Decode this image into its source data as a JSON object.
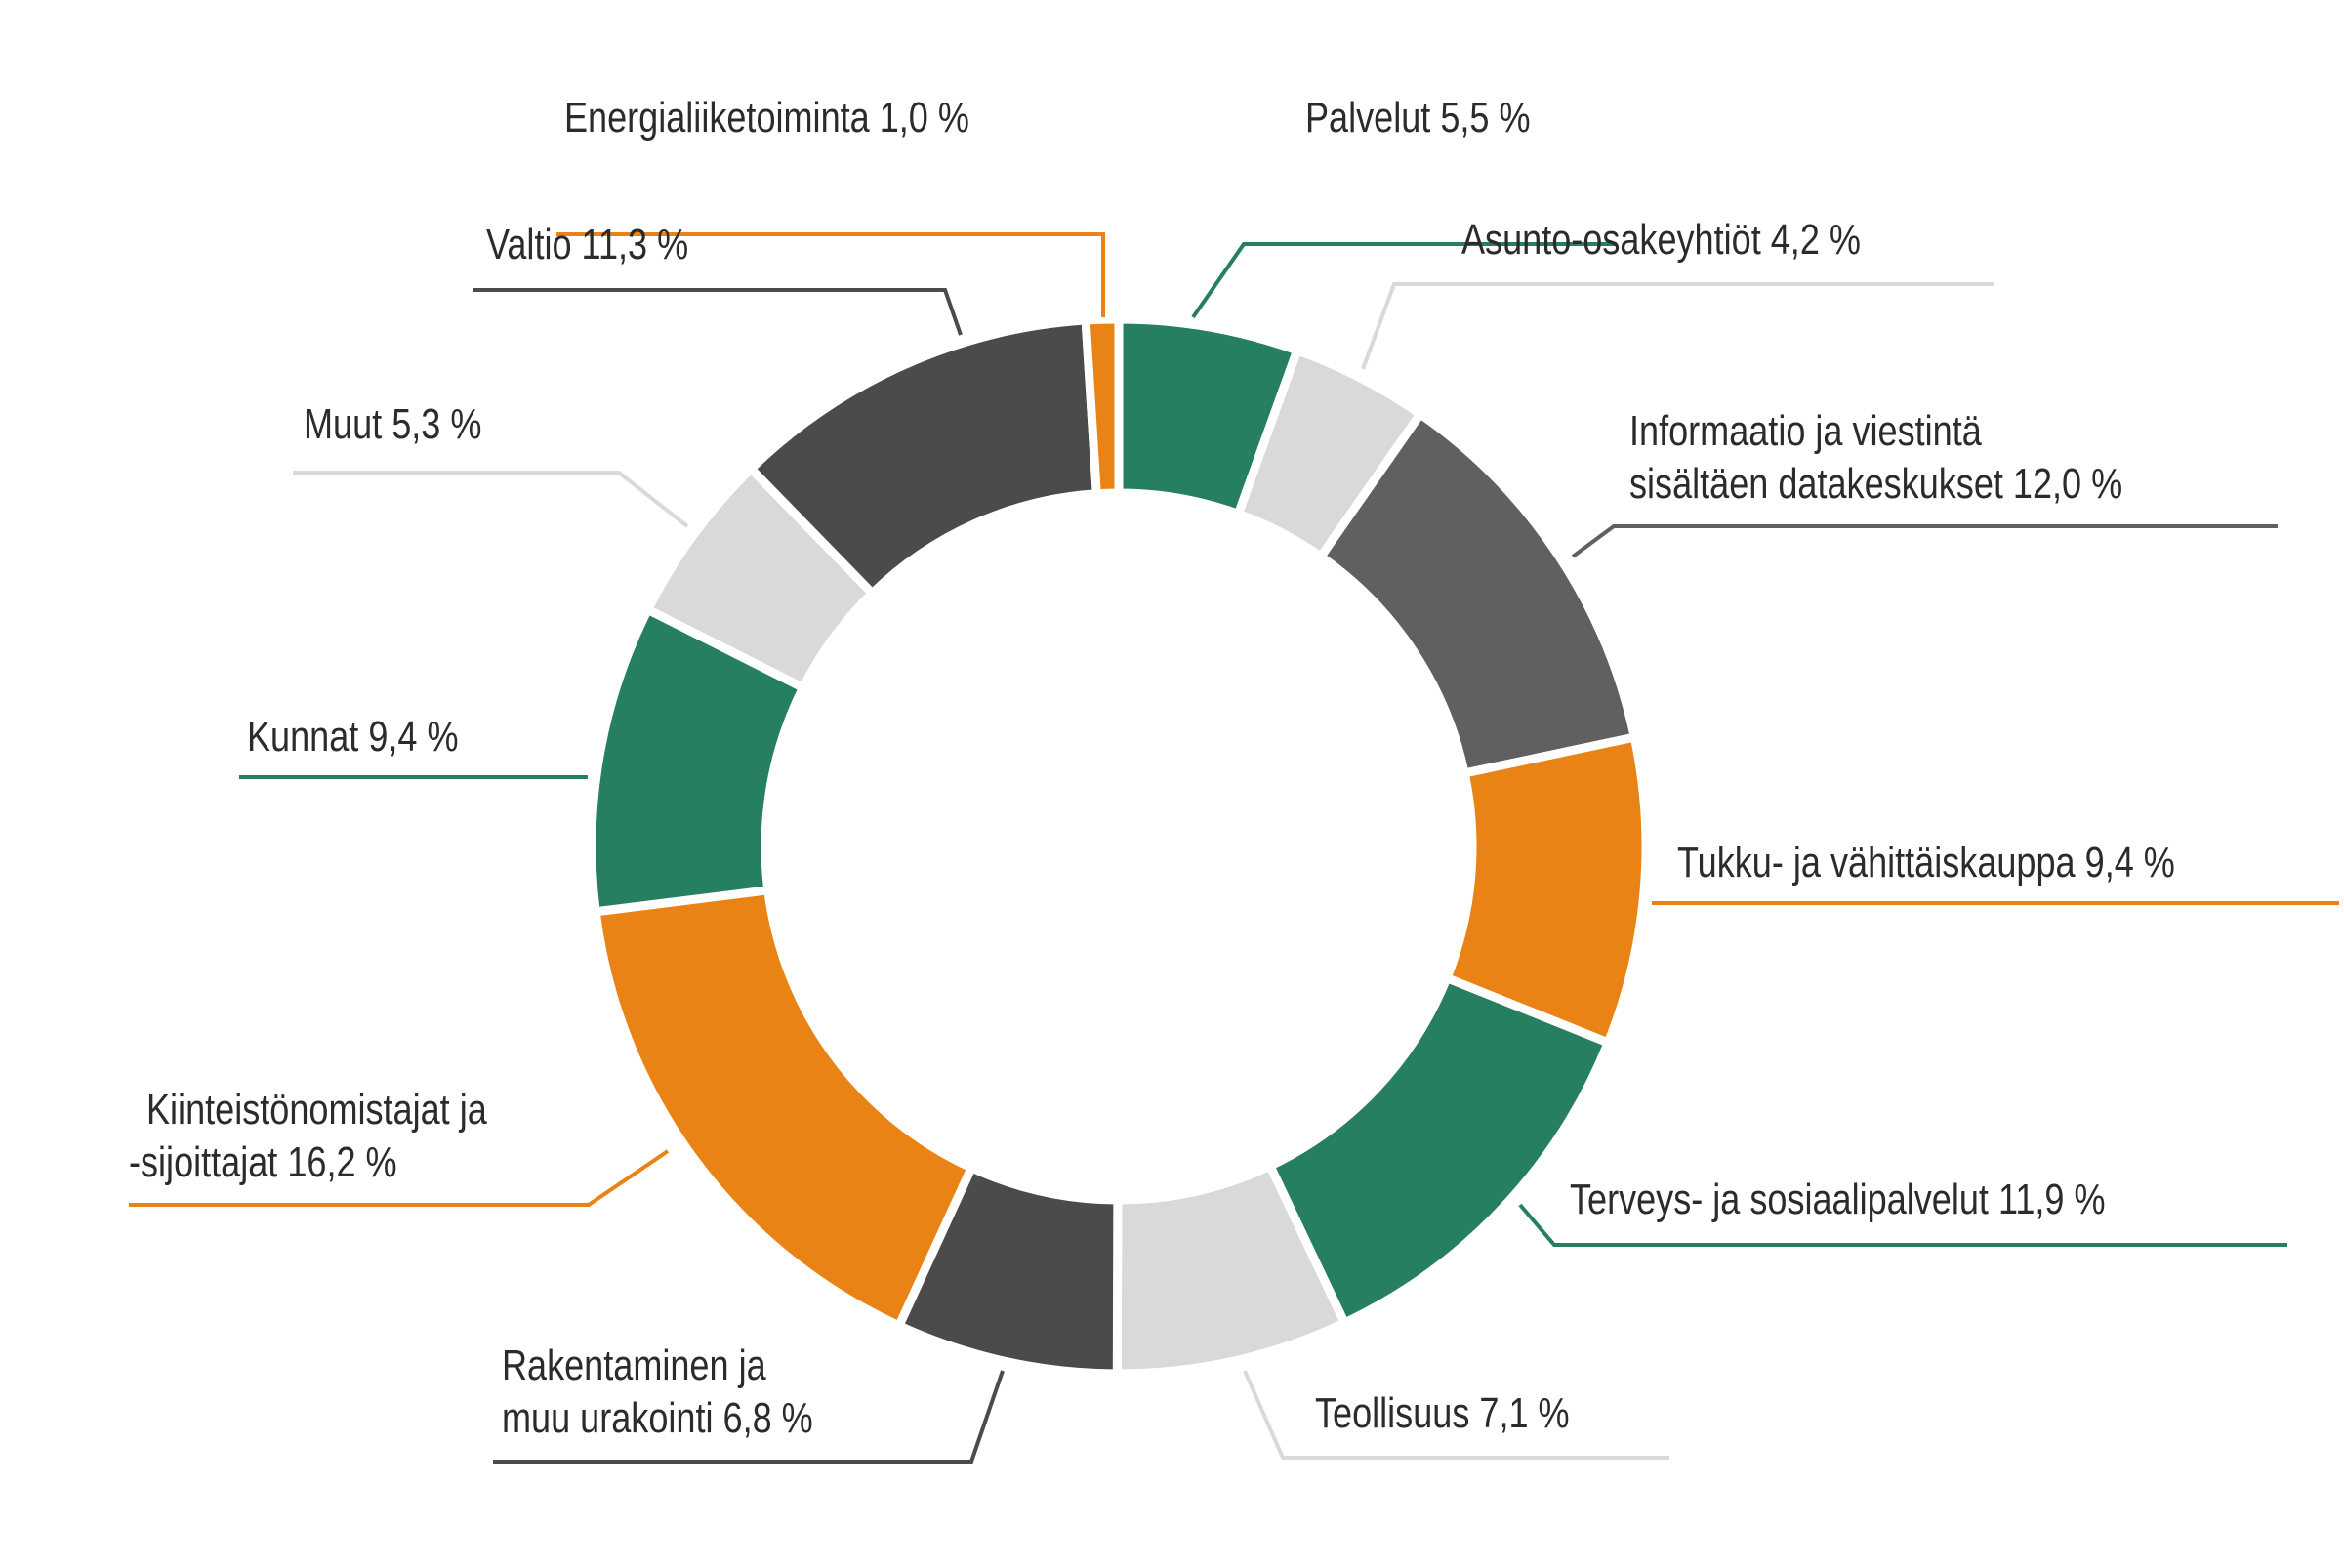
{
  "chart_data": {
    "type": "pie",
    "variant": "donut",
    "title": "",
    "legend": "none",
    "start": "top",
    "direction": "clockwise",
    "colors": {
      "green": "#268060",
      "orange": "#E98315",
      "dark_gray": "#4B4B4B",
      "medium_gray": "#606060",
      "light_gray": "#D9D9D9"
    },
    "slices": [
      {
        "label": "Palvelut",
        "value": 5.5,
        "display": "Palvelut 5,5 %",
        "lines": [
          "Palvelut 5,5 %"
        ],
        "color": "#268060"
      },
      {
        "label": "Asunto-osakeyhtiöt",
        "value": 4.2,
        "display": "Asunto-osakeyhtiöt 4,2 %",
        "lines": [
          "Asunto-osakeyhtiöt 4,2 %"
        ],
        "color": "#D9D9D9"
      },
      {
        "label": "Informaatio ja viestintä sisältäen datakeskukset",
        "value": 12.0,
        "display": "Informaatio ja viestintä sisältäen datakeskukset 12,0 %",
        "lines": [
          "Informaatio ja viestintä",
          "sisältäen datakeskukset 12,0 %"
        ],
        "color": "#606060"
      },
      {
        "label": "Tukku- ja vähittäiskauppa",
        "value": 9.4,
        "display": "Tukku- ja vähittäiskauppa 9,4 %",
        "lines": [
          "Tukku- ja vähittäiskauppa 9,4 %"
        ],
        "color": "#E98315"
      },
      {
        "label": "Terveys- ja sosiaalipalvelut",
        "value": 11.9,
        "display": "Terveys- ja sosiaalipalvelut 11,9 %",
        "lines": [
          "Terveys- ja sosiaalipalvelut 11,9 %"
        ],
        "color": "#268060"
      },
      {
        "label": "Teollisuus",
        "value": 7.1,
        "display": "Teollisuus 7,1 %",
        "lines": [
          "Teollisuus 7,1 %"
        ],
        "color": "#D9D9D9"
      },
      {
        "label": "Rakentaminen ja muu urakointi",
        "value": 6.8,
        "display": "Rakentaminen ja muu urakointi 6,8 %",
        "lines": [
          "Rakentaminen ja",
          "muu urakointi 6,8 %"
        ],
        "color": "#4B4B4B"
      },
      {
        "label": "Kiinteistönomistajat ja -sijoittajat",
        "value": 16.2,
        "display": "Kiinteistönomistajat ja -sijoittajat 16,2 %",
        "lines": [
          "Kiinteistönomistajat ja",
          "-sijoittajat 16,2 %"
        ],
        "color": "#E98315"
      },
      {
        "label": "Kunnat",
        "value": 9.4,
        "display": "Kunnat 9,4 %",
        "lines": [
          "Kunnat 9,4 %"
        ],
        "color": "#268060"
      },
      {
        "label": "Muut",
        "value": 5.3,
        "display": "Muut 5,3 %",
        "lines": [
          "Muut 5,3 %"
        ],
        "color": "#D9D9D9"
      },
      {
        "label": "Valtio",
        "value": 11.3,
        "display": "Valtio 11,3 %",
        "lines": [
          "Valtio 11,3 %"
        ],
        "color": "#4B4B4B"
      },
      {
        "label": "Energialiiketoiminta",
        "value": 1.0,
        "display": "Energialiiketoiminta 1,0 %",
        "lines": [
          "Energialiiketoiminta 1,0 %"
        ],
        "color": "#E98315"
      }
    ],
    "unit": "%"
  }
}
